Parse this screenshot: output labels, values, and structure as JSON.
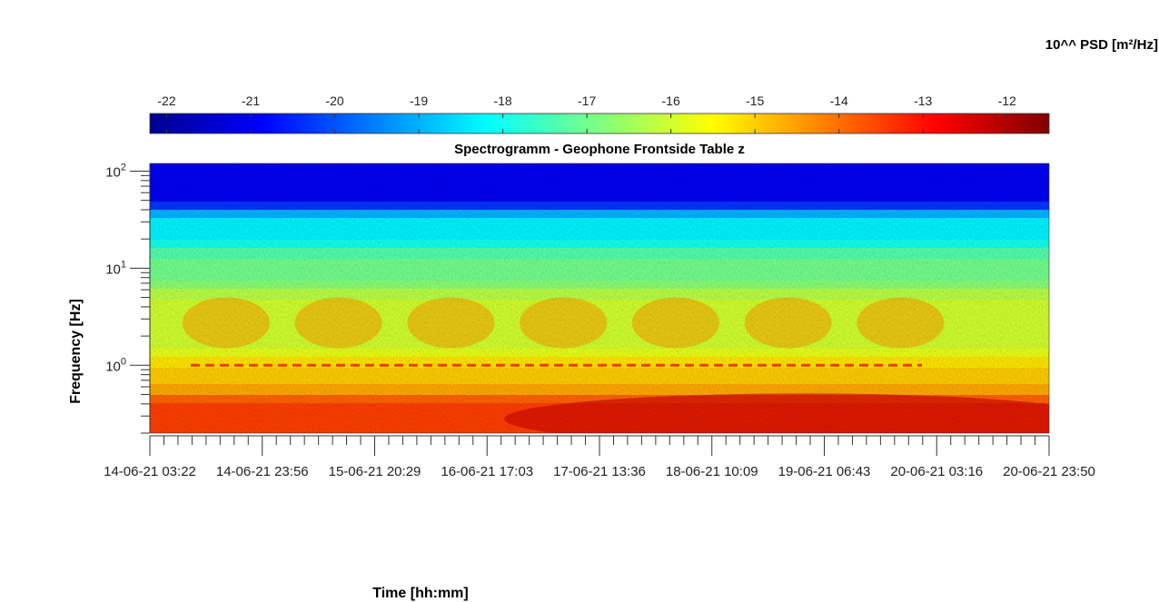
{
  "chart_data": {
    "type": "heatmap",
    "title": "Spectrogramm - Geophone Frontside Table z",
    "xlabel": "Time [hh:mm]",
    "ylabel": "Frequency [Hz]",
    "colorbar_label": "10^^ PSD [m²/Hz]",
    "colormap": "jet",
    "color_range": [
      -22.2,
      -11.5
    ],
    "colorbar_ticks": [
      "-22",
      "-21",
      "-20",
      "-19",
      "-18",
      "-17",
      "-16",
      "-15",
      "-14",
      "-13",
      "-12"
    ],
    "colorbar_tick_values": [
      -22,
      -21,
      -20,
      -19,
      -18,
      -17,
      -16,
      -15,
      -14,
      -13,
      -12
    ],
    "y_scale": "log",
    "y_range_hz": [
      0.2,
      120
    ],
    "y_ticks": [
      {
        "base": "10",
        "exp": "2",
        "value": 100
      },
      {
        "base": "10",
        "exp": "1",
        "value": 10
      },
      {
        "base": "10",
        "exp": "0",
        "value": 1
      }
    ],
    "x_ticks": [
      "14-06-21  03:22",
      "14-06-21  23:56",
      "15-06-21  20:29",
      "16-06-21  17:03",
      "17-06-21  13:36",
      "18-06-21  10:09",
      "19-06-21  06:43",
      "20-06-21  03:16",
      "20-06-21  23:50"
    ],
    "x_tick_labels": [
      "14-06-21 03:22",
      "14-06-21",
      "23:56",
      "15-06-21",
      "20:29",
      "16-06-21",
      "17:03",
      "17-06-21",
      "13:36",
      "18-06-21",
      "10:09",
      "19-06-21",
      "06:43",
      "20-06-21",
      "03:16",
      "20-06-21",
      "23:50"
    ],
    "spectral_bands": [
      {
        "f_low_hz": 40,
        "f_high_hz": 120,
        "log_psd": -21.0
      },
      {
        "f_low_hz": 16,
        "f_high_hz": 40,
        "log_psd": -18.3
      },
      {
        "f_low_hz": 6,
        "f_high_hz": 16,
        "log_psd": -17.0
      },
      {
        "f_low_hz": 1.2,
        "f_high_hz": 6,
        "log_psd": -16.0
      },
      {
        "f_low_hz": 0.5,
        "f_high_hz": 1.2,
        "log_psd": -15.0
      },
      {
        "f_low_hz": 0.2,
        "f_high_hz": 0.5,
        "log_psd": -13.5
      }
    ],
    "day_activity_hz": [
      1.5,
      5
    ],
    "day_activity_log_psd": -14.5
  }
}
